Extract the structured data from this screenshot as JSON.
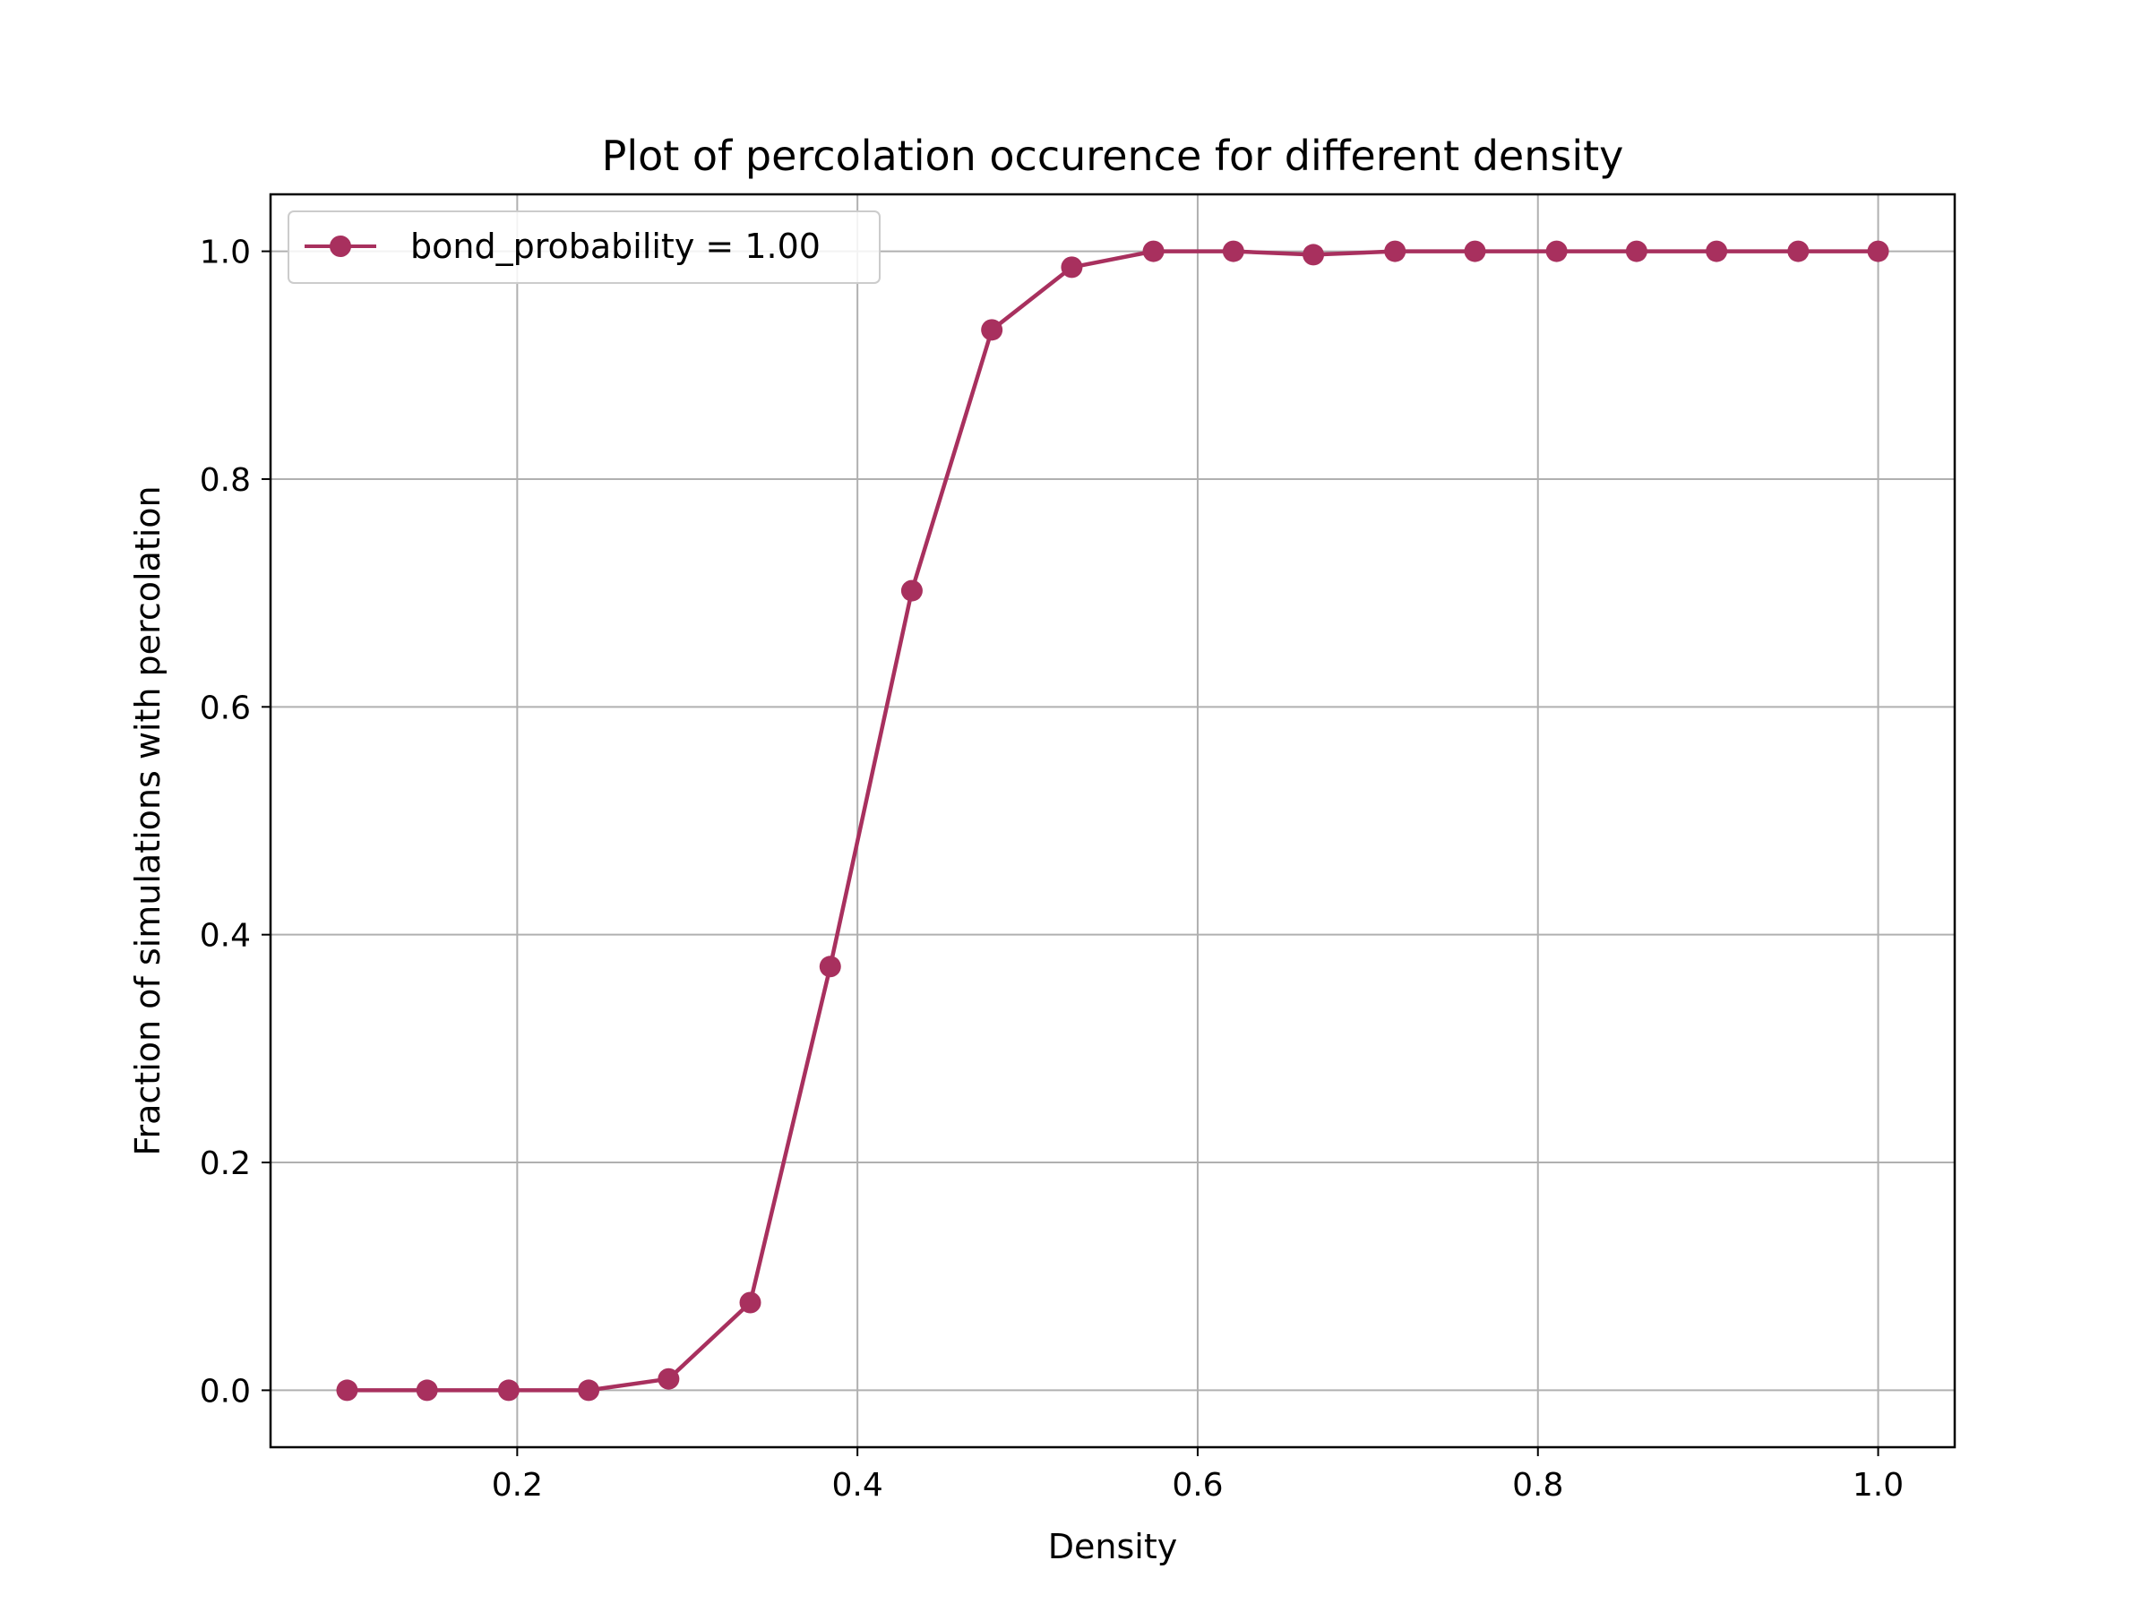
{
  "chart_data": {
    "type": "line",
    "title": "Plot of percolation occurence for different density",
    "xlabel": "Density",
    "ylabel": "Fraction of simulations with percolation",
    "xlim": [
      0.055,
      1.045
    ],
    "ylim": [
      -0.05,
      1.05
    ],
    "xticks": [
      0.2,
      0.4,
      0.6,
      0.8,
      1.0
    ],
    "xtick_labels": [
      "0.2",
      "0.4",
      "0.6",
      "0.8",
      "1.0"
    ],
    "yticks": [
      0.0,
      0.2,
      0.4,
      0.6,
      0.8,
      1.0
    ],
    "ytick_labels": [
      "0.0",
      "0.2",
      "0.4",
      "0.6",
      "0.8",
      "1.0"
    ],
    "grid": true,
    "legend_position": "top-left",
    "series": [
      {
        "name": "bond_probability = 1.00",
        "color": "#a8305e",
        "marker": "circle",
        "x": [
          0.1,
          0.147,
          0.195,
          0.242,
          0.289,
          0.337,
          0.384,
          0.432,
          0.479,
          0.526,
          0.574,
          0.621,
          0.668,
          0.716,
          0.763,
          0.811,
          0.858,
          0.905,
          0.953,
          1.0
        ],
        "y": [
          0.0,
          0.0,
          0.0,
          0.0,
          0.01,
          0.077,
          0.372,
          0.702,
          0.931,
          0.986,
          1.0,
          1.0,
          0.997,
          1.0,
          1.0,
          1.0,
          1.0,
          1.0,
          1.0,
          1.0
        ]
      }
    ]
  }
}
